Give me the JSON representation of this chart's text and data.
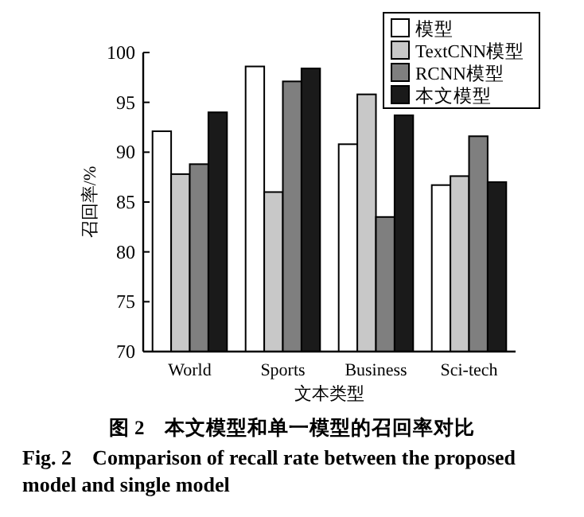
{
  "chart_data": {
    "type": "bar",
    "title": "图 2　本文模型和单一模型的召回率对比",
    "subtitle": "Fig. 2　Comparison of recall rate between the proposed model and single model",
    "xlabel": "文本类型",
    "ylabel": "召回率/%",
    "categories": [
      "World",
      "Sports",
      "Business",
      "Sci-tech"
    ],
    "series": [
      {
        "name": "模型",
        "color": "#ffffff",
        "values": [
          92.1,
          98.6,
          90.8,
          86.7
        ]
      },
      {
        "name": "TextCNN模型",
        "color": "#c8c8c8",
        "values": [
          87.8,
          86.0,
          95.8,
          87.6
        ]
      },
      {
        "name": "RCNN模型",
        "color": "#7f7f7f",
        "values": [
          88.8,
          97.1,
          83.5,
          91.6
        ]
      },
      {
        "name": "本文模型",
        "color": "#1a1a1a",
        "values": [
          94.0,
          98.4,
          93.7,
          87.0
        ]
      }
    ],
    "ylim": [
      70,
      100
    ],
    "yticks": [
      70,
      75,
      80,
      85,
      90,
      95,
      100
    ],
    "grid": false,
    "legend": "top right"
  }
}
